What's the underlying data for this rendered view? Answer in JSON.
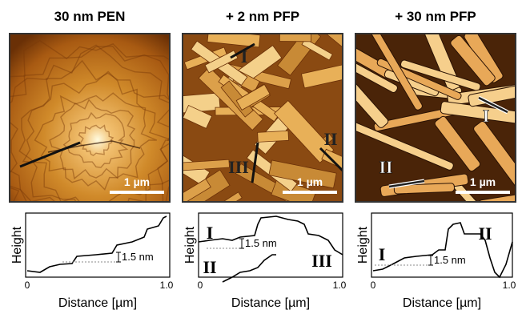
{
  "panels": [
    {
      "title": "30 nm PEN",
      "scale_bar": "1 µm",
      "plot": {
        "y_label": "Height",
        "x_label": "Distance [µm]",
        "x_ticks": [
          "0",
          "1.0"
        ],
        "step_label": "1.5 nm"
      }
    },
    {
      "title": "+ 2 nm PFP",
      "scale_bar": "1 µm",
      "image_labels": [
        "I",
        "II",
        "III"
      ],
      "plot": {
        "y_label": "Height",
        "x_label": "Distance [µm]",
        "x_ticks": [
          "0",
          "1.0"
        ],
        "step_label": "1.5 nm",
        "curve_labels": [
          "I",
          "II",
          "III"
        ]
      }
    },
    {
      "title": "+ 30 nm PFP",
      "scale_bar": "1 µm",
      "image_labels": [
        "I",
        "II"
      ],
      "plot": {
        "y_label": "Height",
        "x_label": "Distance [µm]",
        "x_ticks": [
          "0",
          "1.0"
        ],
        "step_label": "1.5 nm",
        "curve_labels": [
          "I",
          "II"
        ]
      }
    }
  ]
}
